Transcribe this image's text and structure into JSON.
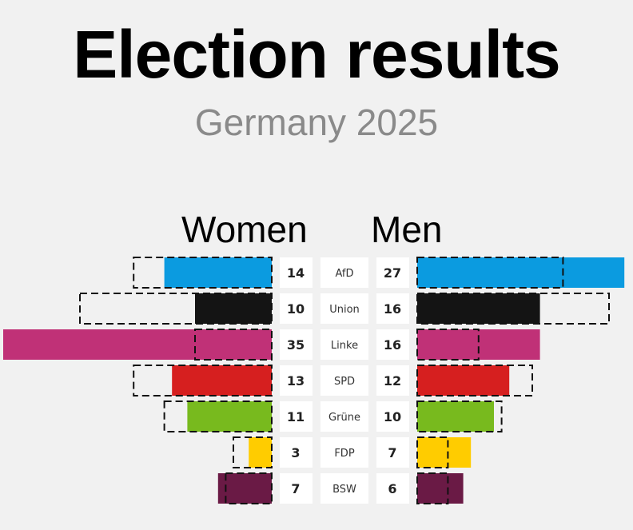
{
  "title": "Election results",
  "subtitle": "Germany 2025",
  "chart_data": {
    "type": "bar",
    "left_label": "Women",
    "right_label": "Men",
    "categories": [
      "AfD",
      "Union",
      "Linke",
      "SPD",
      "Grüne",
      "FDP",
      "BSW"
    ],
    "women": [
      14,
      10,
      35,
      13,
      11,
      3,
      7
    ],
    "men": [
      27,
      16,
      16,
      12,
      10,
      7,
      6
    ],
    "women_previous": [
      18,
      25,
      10,
      18,
      14,
      5,
      6
    ],
    "men_previous": [
      19,
      25,
      8,
      15,
      11,
      4,
      4
    ],
    "colors": [
      "#0b9be0",
      "#141414",
      "#c03177",
      "#d61f1f",
      "#78ba1e",
      "#ffcc00",
      "#6a1a45"
    ]
  }
}
